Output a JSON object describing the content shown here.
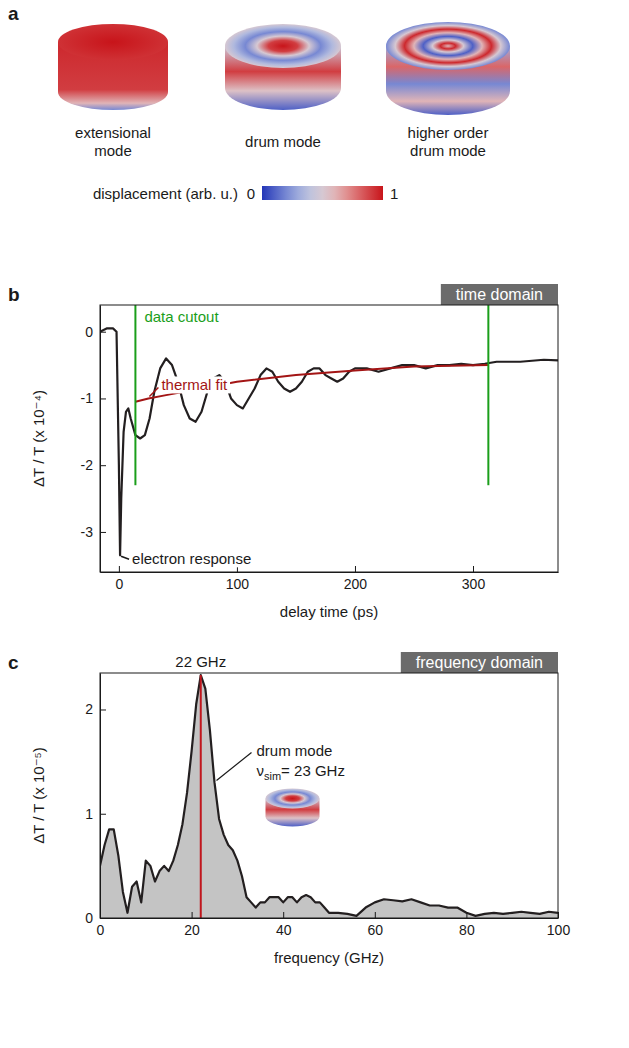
{
  "chart_data": [
    {
      "type": "illustration",
      "panel": "a",
      "items": [
        "extensional mode",
        "drum mode",
        "higher order drum mode"
      ],
      "colorbar": {
        "title": "displacement (arb. u.)",
        "range": [
          0,
          1
        ],
        "ticks": [
          0,
          1
        ]
      }
    },
    {
      "type": "line",
      "panel": "b",
      "title": "time domain",
      "xlabel": "delay time (ps)",
      "ylabel": "ΔT / T (x 10⁻⁴)",
      "xlim": [
        -16,
        372
      ],
      "ylim": [
        -3.6,
        0.4
      ],
      "xticks": [
        0,
        100,
        200,
        300
      ],
      "yticks": [
        -3,
        -2,
        -1,
        0
      ],
      "series": [
        {
          "color": "#231f20",
          "x": [
            -16,
            -10,
            -5,
            -2,
            0,
            1,
            2,
            4,
            6,
            8,
            10,
            14,
            18,
            22,
            26,
            30,
            35,
            40,
            45,
            50,
            55,
            60,
            65,
            70,
            75,
            80,
            85,
            90,
            95,
            100,
            105,
            110,
            115,
            120,
            125,
            130,
            135,
            140,
            145,
            150,
            155,
            160,
            165,
            170,
            175,
            180,
            185,
            190,
            195,
            200,
            210,
            220,
            230,
            240,
            250,
            260,
            270,
            280,
            290,
            300,
            310,
            320,
            340,
            360,
            372
          ],
          "values": [
            0,
            0.05,
            0.05,
            0,
            -2,
            -3.35,
            -2.5,
            -1.5,
            -1.2,
            -1.15,
            -1.3,
            -1.55,
            -1.6,
            -1.55,
            -1.3,
            -0.9,
            -0.55,
            -0.4,
            -0.5,
            -0.75,
            -1.1,
            -1.3,
            -1.35,
            -1.2,
            -0.9,
            -0.7,
            -0.65,
            -0.75,
            -1.0,
            -1.1,
            -1.15,
            -1.0,
            -0.85,
            -0.65,
            -0.55,
            -0.6,
            -0.75,
            -0.85,
            -0.9,
            -0.85,
            -0.75,
            -0.6,
            -0.55,
            -0.55,
            -0.65,
            -0.7,
            -0.75,
            -0.7,
            -0.6,
            -0.55,
            -0.55,
            -0.6,
            -0.55,
            -0.5,
            -0.5,
            -0.55,
            -0.5,
            -0.5,
            -0.48,
            -0.5,
            -0.48,
            -0.45,
            -0.45,
            -0.42,
            -0.43
          ]
        },
        {
          "name": "thermal fit",
          "color": "#a31515",
          "x": [
            14,
            25,
            40,
            70,
            100,
            150,
            200,
            250,
            313
          ],
          "values": [
            -1.05,
            -1.0,
            -0.95,
            -0.85,
            -0.75,
            -0.65,
            -0.58,
            -0.52,
            -0.5
          ]
        }
      ],
      "cutout": {
        "label": "data cutout",
        "color": "#1a9e1a",
        "x": [
          14,
          313
        ],
        "y": [
          -2.3,
          0.4
        ]
      },
      "annotations": [
        {
          "text": "electron response",
          "x": 1,
          "y": -3.35
        }
      ]
    },
    {
      "type": "area",
      "panel": "c",
      "title": "frequency domain",
      "xlabel": "frequency (GHz)",
      "ylabel": "ΔT / T (x 10⁻⁵)",
      "xlim": [
        0,
        100
      ],
      "ylim": [
        0,
        2.35
      ],
      "xticks": [
        0,
        20,
        40,
        60,
        80,
        100
      ],
      "yticks": [
        0,
        1,
        2
      ],
      "x": [
        0,
        1,
        2,
        3,
        4,
        5,
        6,
        7,
        8,
        9,
        10,
        11,
        12,
        13,
        14,
        15,
        16,
        17,
        18,
        19,
        20,
        21,
        22,
        23,
        24,
        25,
        26,
        27,
        28,
        29,
        30,
        31,
        32,
        33,
        34,
        35,
        36,
        37,
        38,
        39,
        40,
        41,
        42,
        43,
        44,
        45,
        46,
        47,
        48,
        49,
        50,
        52,
        54,
        56,
        58,
        60,
        62,
        64,
        66,
        68,
        70,
        72,
        74,
        76,
        78,
        80,
        82,
        84,
        86,
        88,
        90,
        92,
        94,
        96,
        98,
        100
      ],
      "series": [
        {
          "color": "#231f20",
          "values": [
            0.5,
            0.7,
            0.85,
            0.85,
            0.6,
            0.25,
            0.05,
            0.3,
            0.35,
            0.15,
            0.55,
            0.5,
            0.35,
            0.45,
            0.5,
            0.45,
            0.55,
            0.7,
            0.9,
            1.2,
            1.6,
            2.05,
            2.33,
            2.2,
            1.8,
            1.3,
            0.95,
            0.8,
            0.7,
            0.65,
            0.55,
            0.4,
            0.2,
            0.15,
            0.1,
            0.15,
            0.15,
            0.2,
            0.2,
            0.2,
            0.15,
            0.2,
            0.2,
            0.15,
            0.2,
            0.22,
            0.2,
            0.15,
            0.15,
            0.1,
            0.05,
            0.05,
            0.04,
            0.02,
            0.1,
            0.15,
            0.18,
            0.17,
            0.16,
            0.18,
            0.15,
            0.12,
            0.12,
            0.1,
            0.1,
            0.05,
            0.02,
            0.04,
            0.05,
            0.04,
            0.05,
            0.06,
            0.05,
            0.04,
            0.06,
            0.05
          ]
        }
      ],
      "peak": {
        "value": 22,
        "label": "22 GHz",
        "color": "#c0161d"
      },
      "annotation": {
        "text": "drum mode",
        "symbol": "ν",
        "subscript": "sim",
        "label": "= 23 GHz",
        "point": 25
      }
    }
  ]
}
